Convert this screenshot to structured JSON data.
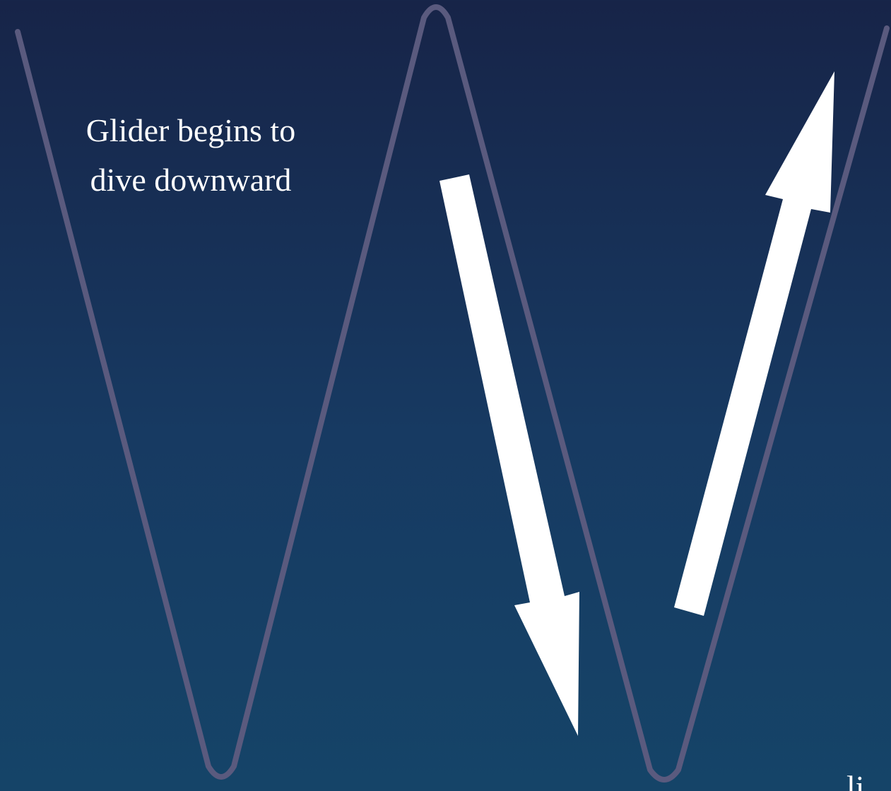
{
  "caption": {
    "line1": "Glider begins to",
    "line2": "dive downward"
  },
  "edge_fragment": "li",
  "colors": {
    "background_top": "#172448",
    "background_bottom": "#154468",
    "path_line": "#5a5a7e",
    "arrows": "#ffffff",
    "text": "#ffffff"
  },
  "elements": {
    "path": "sawtooth glide path",
    "arrow_down": "dive arrow",
    "arrow_up": "climb arrow"
  }
}
